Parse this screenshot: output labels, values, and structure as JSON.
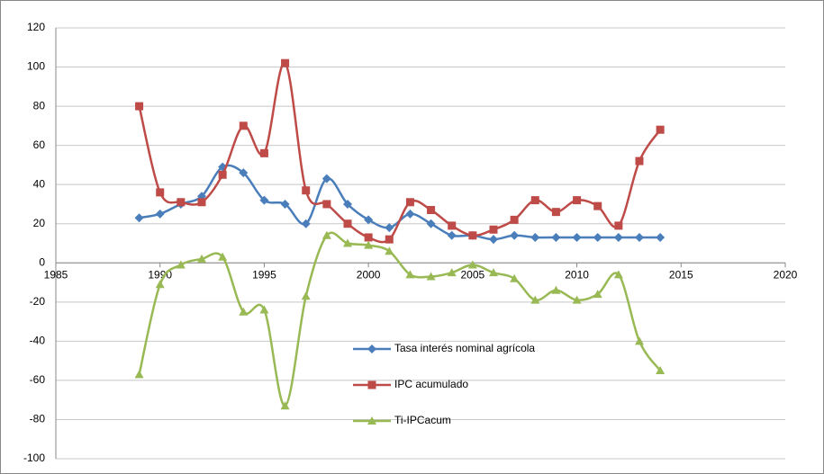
{
  "chart_data": {
    "type": "line",
    "x": [
      1989,
      1990,
      1991,
      1992,
      1993,
      1994,
      1995,
      1996,
      1997,
      1998,
      1999,
      2000,
      2001,
      2002,
      2003,
      2004,
      2005,
      2006,
      2007,
      2008,
      2009,
      2010,
      2011,
      2012,
      2013,
      2014
    ],
    "series": [
      {
        "name": "Tasa interés nominal  agrícola",
        "color": "#4a7ebb",
        "marker": "diamond",
        "values": [
          23,
          25,
          30,
          34,
          49,
          46,
          32,
          30,
          20,
          43,
          30,
          22,
          18,
          25,
          20,
          14,
          14,
          12,
          14,
          13,
          13,
          13,
          13,
          13,
          13,
          13
        ]
      },
      {
        "name": "IPC acumulado",
        "color": "#be4b48",
        "marker": "square",
        "values": [
          80,
          36,
          31,
          31,
          45,
          70,
          56,
          102,
          37,
          30,
          20,
          13,
          12,
          31,
          27,
          19,
          14,
          17,
          22,
          32,
          26,
          32,
          29,
          19,
          52,
          68
        ]
      },
      {
        "name": "Ti-IPCacum",
        "color": "#98b954",
        "marker": "triangle",
        "values": [
          -57,
          -11,
          -1,
          2,
          3,
          -25,
          -24,
          -73,
          -17,
          14,
          10,
          9,
          6,
          -6,
          -7,
          -5,
          -1,
          -5,
          -8,
          -19,
          -14,
          -19,
          -16,
          -6,
          -40,
          -55
        ]
      }
    ],
    "xlim": [
      1985,
      2020
    ],
    "xticks": [
      1985,
      1990,
      1995,
      2000,
      2005,
      2010,
      2015,
      2020
    ],
    "ylim": [
      -100,
      120
    ],
    "yticks": [
      -100,
      -80,
      -60,
      -40,
      -20,
      0,
      20,
      40,
      60,
      80,
      100,
      120
    ],
    "grid": true,
    "smooth": true
  }
}
